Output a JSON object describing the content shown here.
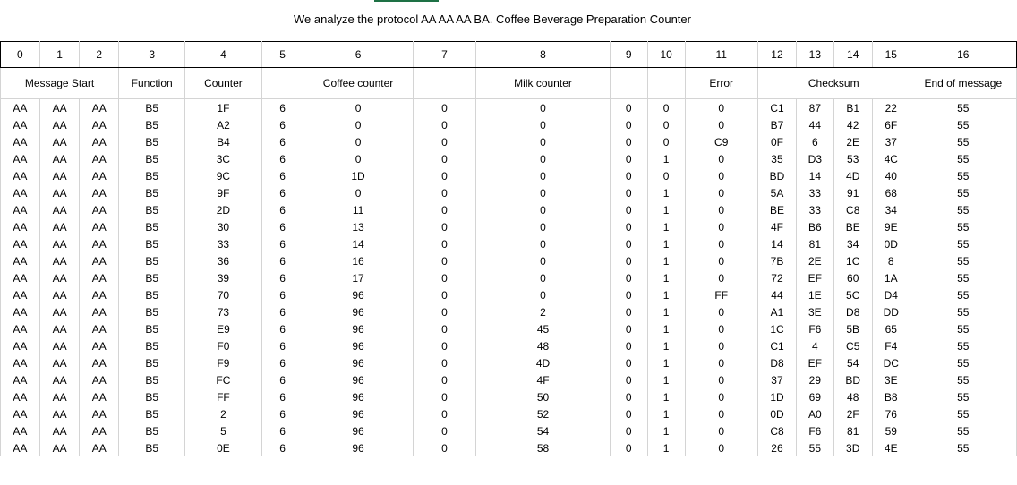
{
  "title": "We analyze the protocol AA AA AA BA. Coffee Beverage Preparation Counter",
  "columns": [
    "0",
    "1",
    "2",
    "3",
    "4",
    "5",
    "6",
    "7",
    "8",
    "9",
    "10",
    "11",
    "12",
    "13",
    "14",
    "15",
    "16"
  ],
  "groups": {
    "message_start": "Message Start",
    "function": "Function",
    "counter": "Counter",
    "coffee_counter": "Coffee counter",
    "milk_counter": "Milk counter",
    "error": "Error",
    "checksum": "Checksum",
    "end_of_message": "End of message"
  },
  "rows": [
    [
      "AA",
      "AA",
      "AA",
      "B5",
      "1F",
      "6",
      "0",
      "0",
      "0",
      "0",
      "0",
      "0",
      "C1",
      "87",
      "B1",
      "22",
      "55"
    ],
    [
      "AA",
      "AA",
      "AA",
      "B5",
      "A2",
      "6",
      "0",
      "0",
      "0",
      "0",
      "0",
      "0",
      "B7",
      "44",
      "42",
      "6F",
      "55"
    ],
    [
      "AA",
      "AA",
      "AA",
      "B5",
      "B4",
      "6",
      "0",
      "0",
      "0",
      "0",
      "0",
      "C9",
      "0F",
      "6",
      "2E",
      "37",
      "55"
    ],
    [
      "AA",
      "AA",
      "AA",
      "B5",
      "3C",
      "6",
      "0",
      "0",
      "0",
      "0",
      "1",
      "0",
      "35",
      "D3",
      "53",
      "4C",
      "55"
    ],
    [
      "AA",
      "AA",
      "AA",
      "B5",
      "9C",
      "6",
      "1D",
      "0",
      "0",
      "0",
      "0",
      "0",
      "BD",
      "14",
      "4D",
      "40",
      "55"
    ],
    [
      "AA",
      "AA",
      "AA",
      "B5",
      "9F",
      "6",
      "0",
      "0",
      "0",
      "0",
      "1",
      "0",
      "5A",
      "33",
      "91",
      "68",
      "55"
    ],
    [
      "AA",
      "AA",
      "AA",
      "B5",
      "2D",
      "6",
      "11",
      "0",
      "0",
      "0",
      "1",
      "0",
      "BE",
      "33",
      "C8",
      "34",
      "55"
    ],
    [
      "AA",
      "AA",
      "AA",
      "B5",
      "30",
      "6",
      "13",
      "0",
      "0",
      "0",
      "1",
      "0",
      "4F",
      "B6",
      "BE",
      "9E",
      "55"
    ],
    [
      "AA",
      "AA",
      "AA",
      "B5",
      "33",
      "6",
      "14",
      "0",
      "0",
      "0",
      "1",
      "0",
      "14",
      "81",
      "34",
      "0D",
      "55"
    ],
    [
      "AA",
      "AA",
      "AA",
      "B5",
      "36",
      "6",
      "16",
      "0",
      "0",
      "0",
      "1",
      "0",
      "7B",
      "2E",
      "1C",
      "8",
      "55"
    ],
    [
      "AA",
      "AA",
      "AA",
      "B5",
      "39",
      "6",
      "17",
      "0",
      "0",
      "0",
      "1",
      "0",
      "72",
      "EF",
      "60",
      "1A",
      "55"
    ],
    [
      "AA",
      "AA",
      "AA",
      "B5",
      "70",
      "6",
      "96",
      "0",
      "0",
      "0",
      "1",
      "FF",
      "44",
      "1E",
      "5C",
      "D4",
      "55"
    ],
    [
      "AA",
      "AA",
      "AA",
      "B5",
      "73",
      "6",
      "96",
      "0",
      "2",
      "0",
      "1",
      "0",
      "A1",
      "3E",
      "D8",
      "DD",
      "55"
    ],
    [
      "AA",
      "AA",
      "AA",
      "B5",
      "E9",
      "6",
      "96",
      "0",
      "45",
      "0",
      "1",
      "0",
      "1C",
      "F6",
      "5B",
      "65",
      "55"
    ],
    [
      "AA",
      "AA",
      "AA",
      "B5",
      "F0",
      "6",
      "96",
      "0",
      "48",
      "0",
      "1",
      "0",
      "C1",
      "4",
      "C5",
      "F4",
      "55"
    ],
    [
      "AA",
      "AA",
      "AA",
      "B5",
      "F9",
      "6",
      "96",
      "0",
      "4D",
      "0",
      "1",
      "0",
      "D8",
      "EF",
      "54",
      "DC",
      "55"
    ],
    [
      "AA",
      "AA",
      "AA",
      "B5",
      "FC",
      "6",
      "96",
      "0",
      "4F",
      "0",
      "1",
      "0",
      "37",
      "29",
      "BD",
      "3E",
      "55"
    ],
    [
      "AA",
      "AA",
      "AA",
      "B5",
      "FF",
      "6",
      "96",
      "0",
      "50",
      "0",
      "1",
      "0",
      "1D",
      "69",
      "48",
      "B8",
      "55"
    ],
    [
      "AA",
      "AA",
      "AA",
      "B5",
      "2",
      "6",
      "96",
      "0",
      "52",
      "0",
      "1",
      "0",
      "0D",
      "A0",
      "2F",
      "76",
      "55"
    ],
    [
      "AA",
      "AA",
      "AA",
      "B5",
      "5",
      "6",
      "96",
      "0",
      "54",
      "0",
      "1",
      "0",
      "C8",
      "F6",
      "81",
      "59",
      "55"
    ],
    [
      "AA",
      "AA",
      "AA",
      "B5",
      "0E",
      "6",
      "96",
      "0",
      "58",
      "0",
      "1",
      "0",
      "26",
      "55",
      "3D",
      "4E",
      "55"
    ]
  ],
  "colors": {
    "grid": "#d4d4d4",
    "border": "#000000",
    "accent": "#1e7145"
  }
}
